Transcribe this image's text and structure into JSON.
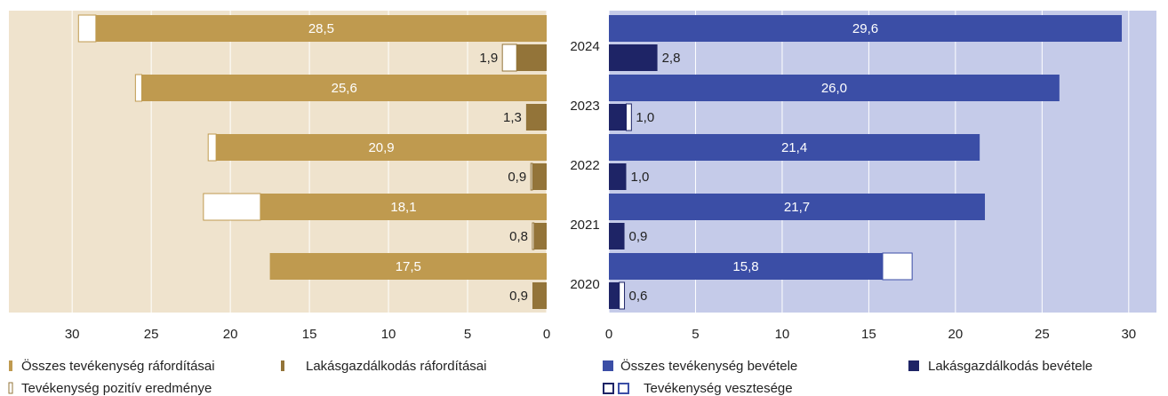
{
  "chart_data": [
    {
      "type": "bar",
      "orientation": "horizontal",
      "xlim": [
        34,
        0
      ],
      "xticks": [
        30,
        25,
        20,
        15,
        10,
        5,
        0
      ],
      "grid": true,
      "background": "#efe3cd",
      "series": [
        {
          "name": "Összes tevékenység ráfordításai",
          "color": "#bf9a4f",
          "values": [
            28.5,
            25.6,
            20.9,
            18.1,
            17.5
          ],
          "value_labels": [
            "28,5",
            "25,6",
            "20,9",
            "18,1",
            "17,5"
          ]
        },
        {
          "name": "Lakásgazdálkodás ráfordításai",
          "color": "#937439",
          "values": [
            1.9,
            1.3,
            0.9,
            0.8,
            0.9
          ],
          "value_labels": [
            "1,9",
            "1,3",
            "0,9",
            "0,8",
            "0,9"
          ]
        },
        {
          "name": "Tevékenység pozitív eredménye",
          "color": "#ffffff",
          "values": [
            1.1,
            0.4,
            0.5,
            3.6,
            null
          ],
          "housing_values": [
            0.9,
            null,
            0.1,
            0.1,
            null
          ]
        }
      ]
    },
    {
      "type": "bar",
      "orientation": "horizontal",
      "categories": [
        "2024",
        "2023",
        "2022",
        "2021",
        "2020"
      ],
      "xlim": [
        0,
        31.6
      ],
      "xticks": [
        0,
        5,
        10,
        15,
        20,
        25,
        30
      ],
      "grid": true,
      "background": "#c5cbe9",
      "series": [
        {
          "name": "Összes tevékenység bevétele",
          "color": "#3b4ea6",
          "values": [
            29.6,
            26.0,
            21.4,
            21.7,
            15.8
          ],
          "value_labels": [
            "29,6",
            "26,0",
            "21,4",
            "21,7",
            "15,8"
          ]
        },
        {
          "name": "Lakásgazdálkodás bevétele",
          "color": "#1e2466",
          "values": [
            2.8,
            1.0,
            1.0,
            0.9,
            0.6
          ],
          "value_labels": [
            "2,8",
            "1,0",
            "1,0",
            "0,9",
            "0,6"
          ]
        },
        {
          "name": "Tevékenység vesztesége",
          "color": "#ffffff",
          "values": [
            null,
            null,
            null,
            null,
            1.7
          ],
          "housing_values": [
            null,
            0.3,
            null,
            null,
            0.3
          ]
        }
      ]
    }
  ]
}
